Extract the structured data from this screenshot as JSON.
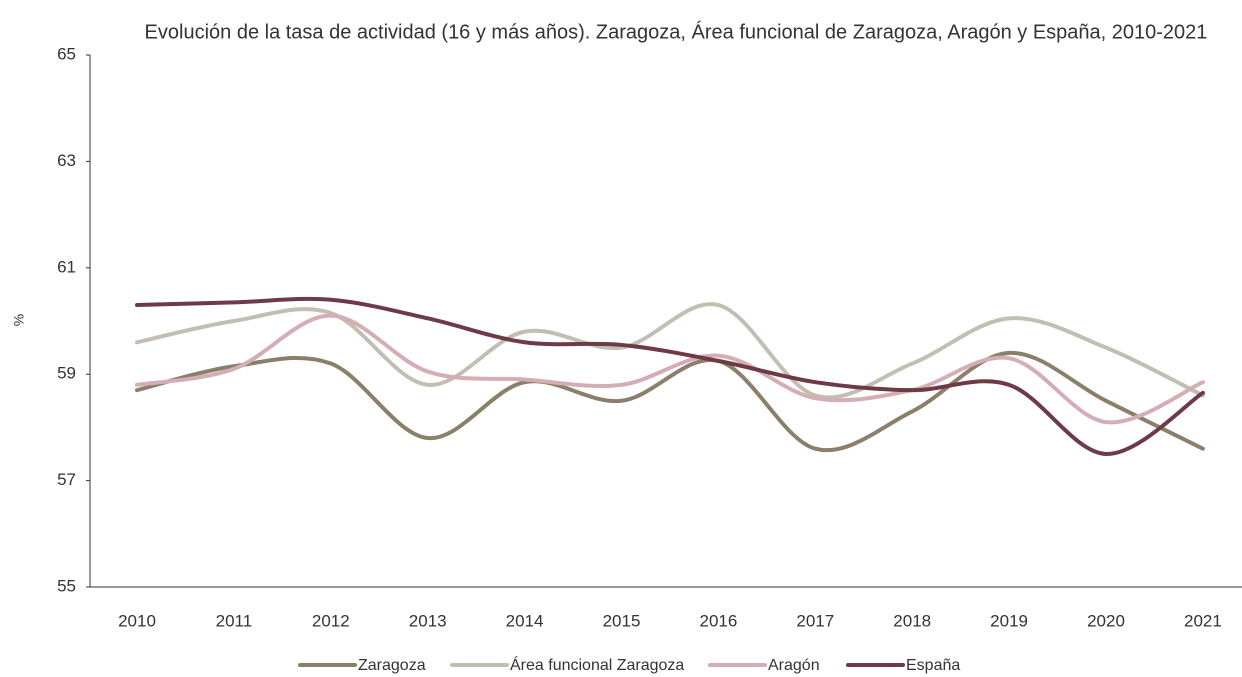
{
  "chart_data": {
    "type": "line",
    "title": "Evolución de la tasa de actividad (16 y más años). Zaragoza, Área funcional de Zaragoza, Aragón y España, 2010-2021",
    "y_label": "%",
    "categories": [
      "2010",
      "2011",
      "2012",
      "2013",
      "2014",
      "2015",
      "2016",
      "2017",
      "2018",
      "2019",
      "2020",
      "2021"
    ],
    "series": [
      {
        "name": "Zaragoza",
        "color": "#8a7f6a",
        "values": [
          58.7,
          59.15,
          59.2,
          57.8,
          58.85,
          58.5,
          59.25,
          57.6,
          58.3,
          59.4,
          58.5,
          57.6
        ]
      },
      {
        "name": "Área funcional Zaragoza",
        "color": "#c2bfb2",
        "values": [
          59.6,
          60.0,
          60.15,
          58.8,
          59.8,
          59.5,
          60.3,
          58.6,
          59.2,
          60.05,
          59.5,
          58.6
        ]
      },
      {
        "name": "Aragón",
        "color": "#d4aeb4",
        "values": [
          58.8,
          59.1,
          60.1,
          59.05,
          58.9,
          58.8,
          59.35,
          58.55,
          58.7,
          59.3,
          58.1,
          58.85
        ]
      },
      {
        "name": "España",
        "color": "#6e3a45",
        "values": [
          60.3,
          60.35,
          60.4,
          60.05,
          59.6,
          59.55,
          59.25,
          58.85,
          58.7,
          58.8,
          57.5,
          58.65
        ]
      }
    ],
    "ylim": [
      55,
      65
    ],
    "yticks": [
      55,
      57,
      59,
      61,
      63,
      65
    ],
    "smooth": true
  }
}
